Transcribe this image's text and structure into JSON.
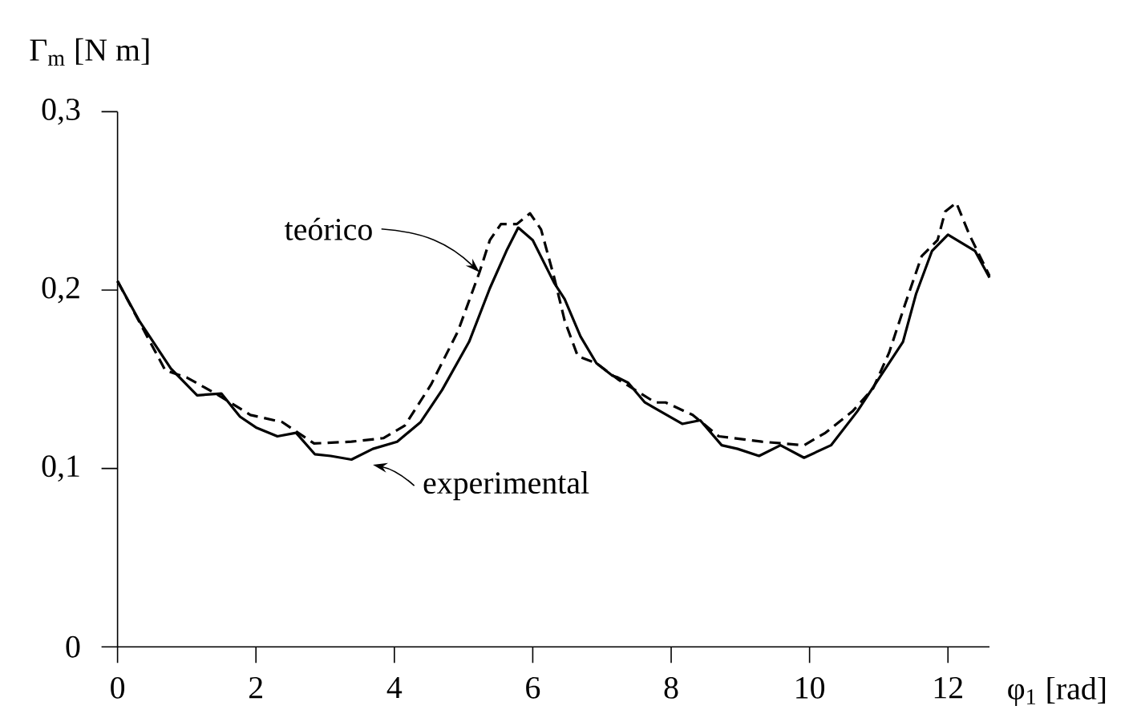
{
  "chart_data": {
    "type": "line",
    "xlabel": "φ$_{1}$ [rad]",
    "ylabel": "Γ$_{m}$ [N m]",
    "xlim": [
      0,
      12.6
    ],
    "ylim": [
      0,
      0.3
    ],
    "xticks": [
      0,
      2,
      4,
      6,
      8,
      10,
      12
    ],
    "yticks": [
      0,
      {
        "value": 0.1,
        "label": "0,1"
      },
      {
        "value": 0.2,
        "label": "0,2"
      },
      {
        "value": 0.3,
        "label": "0,3"
      }
    ],
    "grid": false,
    "marker": "none",
    "annotations": [
      {
        "text": "teórico",
        "x": 5.23,
        "y": 0.21
      },
      {
        "text": "experimental",
        "x": 3.69,
        "y": 0.111
      }
    ],
    "series": [
      {
        "color": "#000000",
        "line_style": "solid",
        "x": [
          0,
          0.31,
          0.77,
          1.15,
          1.5,
          1.77,
          2.0,
          2.31,
          2.58,
          2.85,
          3.08,
          3.38,
          3.69,
          4.04,
          4.38,
          4.69,
          5.08,
          5.38,
          5.62,
          5.79,
          6.0,
          6.31,
          6.46,
          6.69,
          6.92,
          7.15,
          7.23,
          7.38,
          7.62,
          8.16,
          8.42,
          8.73,
          8.96,
          9.27,
          9.58,
          9.92,
          10.31,
          10.69,
          11.08,
          11.35,
          11.54,
          11.77,
          12.0,
          12.39,
          12.6
        ],
        "values": [
          0.205,
          0.183,
          0.156,
          0.141,
          0.142,
          0.129,
          0.123,
          0.118,
          0.12,
          0.108,
          0.107,
          0.105,
          0.111,
          0.115,
          0.126,
          0.144,
          0.171,
          0.201,
          0.222,
          0.235,
          0.228,
          0.204,
          0.195,
          0.174,
          0.159,
          0.152,
          0.151,
          0.148,
          0.137,
          0.125,
          0.127,
          0.113,
          0.111,
          0.107,
          0.113,
          0.106,
          0.113,
          0.132,
          0.155,
          0.171,
          0.198,
          0.222,
          0.231,
          0.222,
          0.207
        ]
      },
      {
        "color": "#000000",
        "line_style": "dashed",
        "x": [
          0,
          0.69,
          1.0,
          1.46,
          1.92,
          2.38,
          2.84,
          3.38,
          3.84,
          4.15,
          4.53,
          4.92,
          5.23,
          5.38,
          5.54,
          5.77,
          5.96,
          6.12,
          6.31,
          6.46,
          6.65,
          6.92,
          7.23,
          7.77,
          7.92,
          8.31,
          8.69,
          9.31,
          9.92,
          10.23,
          10.62,
          10.92,
          11.15,
          11.38,
          11.62,
          11.85,
          11.96,
          12.12,
          12.31,
          12.6
        ],
        "values": [
          0.205,
          0.155,
          0.151,
          0.141,
          0.13,
          0.126,
          0.114,
          0.115,
          0.117,
          0.124,
          0.147,
          0.177,
          0.21,
          0.228,
          0.237,
          0.237,
          0.243,
          0.234,
          0.207,
          0.183,
          0.163,
          0.159,
          0.15,
          0.137,
          0.137,
          0.13,
          0.118,
          0.115,
          0.113,
          0.12,
          0.132,
          0.145,
          0.165,
          0.192,
          0.219,
          0.228,
          0.244,
          0.249,
          0.231,
          0.208
        ]
      }
    ]
  }
}
